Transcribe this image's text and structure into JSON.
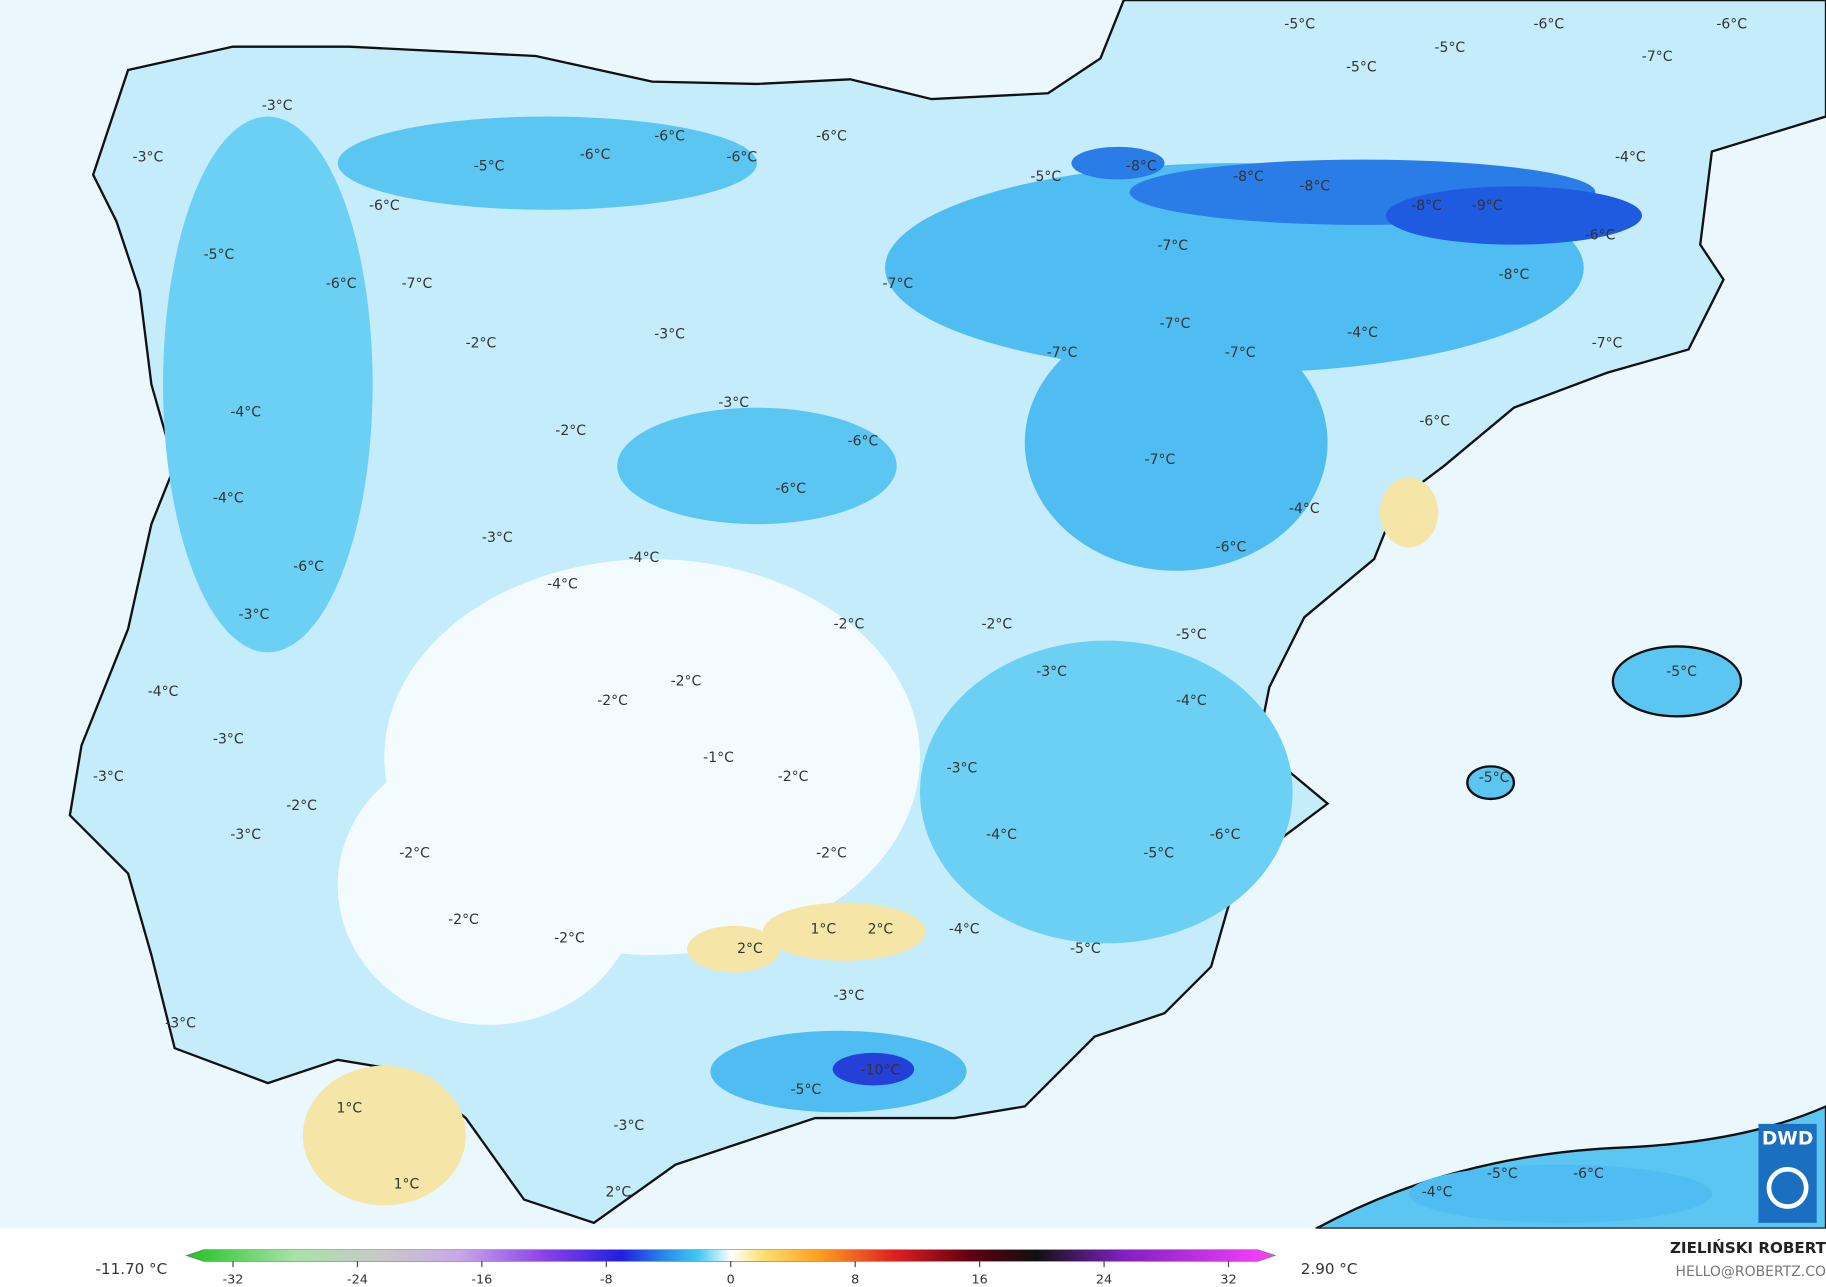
{
  "map": {
    "labels": [
      "-3°C",
      "-3°C",
      "-5°C",
      "-6°C",
      "-6°C",
      "-6°C",
      "-6°C",
      "-6°C",
      "-5°C",
      "-6°C",
      "-7°C",
      "-2°C",
      "-3°C",
      "-4°C",
      "-3°C",
      "-2°C",
      "-6°C",
      "-6°C",
      "-4°C",
      "-3°C",
      "-4°C",
      "-4°C",
      "-6°C",
      "-3°C",
      "-2°C",
      "-2°C",
      "-2°C",
      "-2°C",
      "-4°C",
      "-3°C",
      "-1°C",
      "-2°C",
      "-3°C",
      "-2°C",
      "-3°C",
      "-3°C",
      "-2°C",
      "-2°C",
      "-4°C",
      "-2°C",
      "-2°C",
      "1°C",
      "2°C",
      "2°C",
      "-4°C",
      "-3°C",
      "-3°C",
      "-10°C",
      "-5°C",
      "-3°C",
      "1°C",
      "1°C",
      "2°C",
      "-5°C",
      "-5°C",
      "-6°C",
      "-6°C",
      "-7°C",
      "-5°C",
      "-4°C",
      "-5°C",
      "-8°C",
      "-8°C",
      "-8°C",
      "-8°C",
      "-9°C",
      "-6°C",
      "-7°C",
      "-7°C",
      "-8°C",
      "-7°C",
      "-4°C",
      "-7°C",
      "-7°C",
      "-7°C",
      "-6°C",
      "-7°C",
      "-4°C",
      "-6°C",
      "-5°C",
      "-3°C",
      "-4°C",
      "-5°C",
      "-5°C",
      "-6°C",
      "-5°C",
      "-5°C",
      "-4°C",
      "-5°C",
      "-6°C"
    ],
    "logo": "DWD"
  },
  "colorbar": {
    "min_label": "-11.70 °C",
    "max_label": "2.90 °C",
    "lim": [
      -35,
      35
    ],
    "ticks": [
      -32,
      -24,
      -16,
      -8,
      0,
      8,
      16,
      24,
      32
    ]
  },
  "credit": {
    "author": "ZIELIŃSKI ROBERT",
    "email": "HELLO@ROBERTZ.CO"
  }
}
